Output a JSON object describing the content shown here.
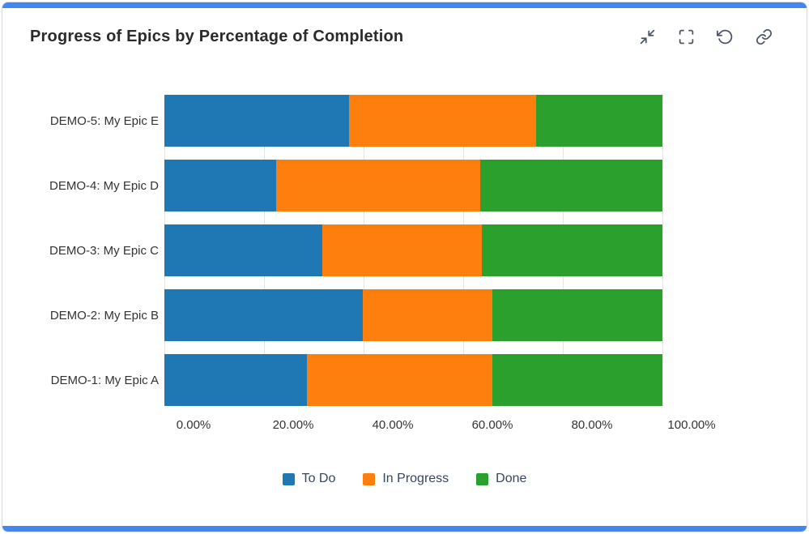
{
  "header": {
    "title": "Progress of Epics by Percentage of Completion",
    "action_icons": [
      "minimize-icon",
      "fullscreen-icon",
      "refresh-icon",
      "link-icon"
    ]
  },
  "colors": {
    "accent": "#4285F4",
    "to_do": "#1F77B4",
    "in_progress": "#FF7F0E",
    "done": "#2CA02C",
    "gridline": "#e4e4e4"
  },
  "chart_data": {
    "type": "bar",
    "orientation": "horizontal",
    "stacked": true,
    "title": "Progress of Epics by Percentage of Completion",
    "categories": [
      "DEMO-1: My Epic A",
      "DEMO-2: My Epic B",
      "DEMO-3: My Epic C",
      "DEMO-4: My Epic D",
      "DEMO-5: My Epic E"
    ],
    "category_order_top_to_bottom": [
      "DEMO-5: My Epic E",
      "DEMO-4: My Epic D",
      "DEMO-3: My Epic C",
      "DEMO-2: My Epic B",
      "DEMO-1: My Epic A"
    ],
    "series": [
      {
        "name": "To Do",
        "color": "#1F77B4",
        "values": [
          28.6,
          39.8,
          31.7,
          22.4,
          37.1
        ]
      },
      {
        "name": "In Progress",
        "color": "#FF7F0E",
        "values": [
          37.3,
          26.1,
          32.0,
          41.0,
          37.5
        ]
      },
      {
        "name": "Done",
        "color": "#2CA02C",
        "values": [
          34.1,
          34.1,
          36.3,
          36.6,
          25.4
        ]
      }
    ],
    "x_ticks": [
      "0.00%",
      "20.00%",
      "40.00%",
      "60.00%",
      "80.00%",
      "100.00%"
    ],
    "xlim": [
      0,
      100
    ],
    "grid": true,
    "legend_position": "bottom"
  }
}
